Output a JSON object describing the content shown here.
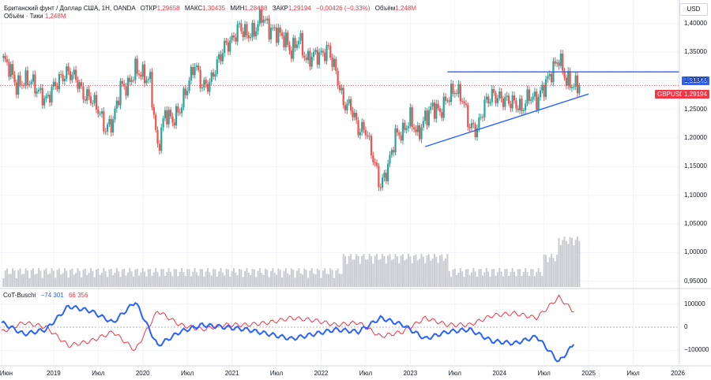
{
  "header": {
    "title": "Британский фунт / Доллар США, 1Н, OANDA",
    "open_label": "ОТКР",
    "open": "1,29658",
    "high_label": "МАКС",
    "high": "1,30435",
    "low_label": "МИН",
    "low": "1,28438",
    "close_label": "ЗАКР",
    "close": "1,29194",
    "change": "−0,00426 (−0,33%)",
    "vol_label": "Объём",
    "vol": "1,248M",
    "vol_line_label": "Объём · Тики",
    "vol_line_value": "1,248M"
  },
  "currency_button": "USD",
  "badges": {
    "resistance": "1,31546",
    "symbol": "GBPUSD",
    "price": "1,29194"
  },
  "y_axis_labels": [
    "1,40000",
    "1,35000",
    "1,30000",
    "1,25000",
    "1,20000",
    "1,15000",
    "1,10000",
    "1,05000",
    "1,00000",
    "0,95000"
  ],
  "cot_axis_labels": [
    "100000",
    "0",
    "−100000"
  ],
  "x_axis_labels": [
    "Июн",
    "2019",
    "Июл",
    "2020",
    "Июл",
    "2021",
    "Июл",
    "2022",
    "Июл",
    "2023",
    "Июл",
    "2024",
    "Июл",
    "2025",
    "Июл",
    "2026"
  ],
  "cot": {
    "name": "CoT-Buschi",
    "blue_value": "−74 301",
    "red_value": "66 356"
  },
  "colors": {
    "up": "#26a69a",
    "down": "#ef5350",
    "blue": "#2962ff",
    "red": "#f23645",
    "volume": "#c9cbd1"
  },
  "chart_data": {
    "type": "candlestick",
    "symbol": "GBPUSD",
    "x_range": [
      "2018-06",
      "2026-01"
    ],
    "price_ylim": [
      0.94,
      1.43
    ],
    "close_series": [
      [
        "2018-06",
        1.34
      ],
      [
        "2018-07",
        1.325
      ],
      [
        "2018-08",
        1.29
      ],
      [
        "2018-09",
        1.3
      ],
      [
        "2018-10",
        1.3
      ],
      [
        "2018-11",
        1.28
      ],
      [
        "2018-12",
        1.265
      ],
      [
        "2019-01",
        1.29
      ],
      [
        "2019-02",
        1.305
      ],
      [
        "2019-03",
        1.315
      ],
      [
        "2019-04",
        1.305
      ],
      [
        "2019-05",
        1.275
      ],
      [
        "2019-06",
        1.27
      ],
      [
        "2019-07",
        1.25
      ],
      [
        "2019-08",
        1.215
      ],
      [
        "2019-09",
        1.23
      ],
      [
        "2019-10",
        1.29
      ],
      [
        "2019-11",
        1.29
      ],
      [
        "2019-12",
        1.32
      ],
      [
        "2020-01",
        1.31
      ],
      [
        "2020-02",
        1.3
      ],
      [
        "2020-03",
        1.18
      ],
      [
        "2020-04",
        1.245
      ],
      [
        "2020-05",
        1.23
      ],
      [
        "2020-06",
        1.25
      ],
      [
        "2020-07",
        1.29
      ],
      [
        "2020-08",
        1.33
      ],
      [
        "2020-09",
        1.29
      ],
      [
        "2020-10",
        1.295
      ],
      [
        "2020-11",
        1.33
      ],
      [
        "2020-12",
        1.36
      ],
      [
        "2021-01",
        1.37
      ],
      [
        "2021-02",
        1.395
      ],
      [
        "2021-03",
        1.38
      ],
      [
        "2021-04",
        1.385
      ],
      [
        "2021-05",
        1.415
      ],
      [
        "2021-06",
        1.39
      ],
      [
        "2021-07",
        1.385
      ],
      [
        "2021-08",
        1.375
      ],
      [
        "2021-09",
        1.35
      ],
      [
        "2021-10",
        1.375
      ],
      [
        "2021-11",
        1.335
      ],
      [
        "2021-12",
        1.345
      ],
      [
        "2022-01",
        1.345
      ],
      [
        "2022-02",
        1.355
      ],
      [
        "2022-03",
        1.315
      ],
      [
        "2022-04",
        1.26
      ],
      [
        "2022-05",
        1.255
      ],
      [
        "2022-06",
        1.215
      ],
      [
        "2022-07",
        1.215
      ],
      [
        "2022-08",
        1.165
      ],
      [
        "2022-09",
        1.115
      ],
      [
        "2022-10",
        1.15
      ],
      [
        "2022-11",
        1.205
      ],
      [
        "2022-12",
        1.21
      ],
      [
        "2023-01",
        1.235
      ],
      [
        "2023-02",
        1.205
      ],
      [
        "2023-03",
        1.235
      ],
      [
        "2023-04",
        1.255
      ],
      [
        "2023-05",
        1.245
      ],
      [
        "2023-06",
        1.27
      ],
      [
        "2023-07",
        1.285
      ],
      [
        "2023-08",
        1.27
      ],
      [
        "2023-09",
        1.22
      ],
      [
        "2023-10",
        1.215
      ],
      [
        "2023-11",
        1.26
      ],
      [
        "2023-12",
        1.275
      ],
      [
        "2024-01",
        1.27
      ],
      [
        "2024-02",
        1.265
      ],
      [
        "2024-03",
        1.262
      ],
      [
        "2024-04",
        1.25
      ],
      [
        "2024-05",
        1.275
      ],
      [
        "2024-06",
        1.265
      ],
      [
        "2024-07",
        1.29
      ],
      [
        "2024-08",
        1.315
      ],
      [
        "2024-09",
        1.34
      ],
      [
        "2024-10",
        1.3
      ],
      [
        "2024-11",
        1.292
      ]
    ],
    "last_close": 1.29194,
    "resistance_level": 1.31546,
    "support_trendline": [
      [
        "2023-03",
        1.185
      ],
      [
        "2024-11",
        1.265
      ]
    ],
    "volume_range": [
      0.94,
      1.04
    ],
    "cot": {
      "name": "CoT-Buschi",
      "ylim": [
        -160000,
        160000
      ],
      "blue_last": -74301,
      "red_last": 66356,
      "blue_series": [
        [
          "2018-06",
          20000
        ],
        [
          "2018-09",
          -30000
        ],
        [
          "2018-12",
          -10000
        ],
        [
          "2019-03",
          90000
        ],
        [
          "2019-06",
          70000
        ],
        [
          "2019-09",
          20000
        ],
        [
          "2019-12",
          110000
        ],
        [
          "2020-03",
          -80000
        ],
        [
          "2020-06",
          -20000
        ],
        [
          "2020-09",
          10000
        ],
        [
          "2020-12",
          0
        ],
        [
          "2021-03",
          -10000
        ],
        [
          "2021-06",
          -30000
        ],
        [
          "2021-09",
          -50000
        ],
        [
          "2021-12",
          -30000
        ],
        [
          "2022-03",
          -10000
        ],
        [
          "2022-06",
          -20000
        ],
        [
          "2022-09",
          40000
        ],
        [
          "2022-12",
          10000
        ],
        [
          "2023-03",
          -50000
        ],
        [
          "2023-06",
          -20000
        ],
        [
          "2023-09",
          -10000
        ],
        [
          "2023-12",
          -60000
        ],
        [
          "2024-03",
          -70000
        ],
        [
          "2024-06",
          -40000
        ],
        [
          "2024-09",
          -150000
        ],
        [
          "2024-11",
          -74301
        ]
      ],
      "red_series": [
        [
          "2018-06",
          -20000
        ],
        [
          "2018-09",
          20000
        ],
        [
          "2018-12",
          0
        ],
        [
          "2019-03",
          -80000
        ],
        [
          "2019-06",
          -60000
        ],
        [
          "2019-09",
          -20000
        ],
        [
          "2019-12",
          -100000
        ],
        [
          "2020-03",
          70000
        ],
        [
          "2020-06",
          10000
        ],
        [
          "2020-09",
          -10000
        ],
        [
          "2020-12",
          10000
        ],
        [
          "2021-03",
          10000
        ],
        [
          "2021-06",
          20000
        ],
        [
          "2021-09",
          40000
        ],
        [
          "2021-12",
          30000
        ],
        [
          "2022-03",
          10000
        ],
        [
          "2022-06",
          20000
        ],
        [
          "2022-09",
          -40000
        ],
        [
          "2022-12",
          -20000
        ],
        [
          "2023-03",
          40000
        ],
        [
          "2023-06",
          10000
        ],
        [
          "2023-09",
          10000
        ],
        [
          "2023-12",
          50000
        ],
        [
          "2024-03",
          60000
        ],
        [
          "2024-06",
          40000
        ],
        [
          "2024-09",
          130000
        ],
        [
          "2024-11",
          66356
        ]
      ]
    }
  }
}
